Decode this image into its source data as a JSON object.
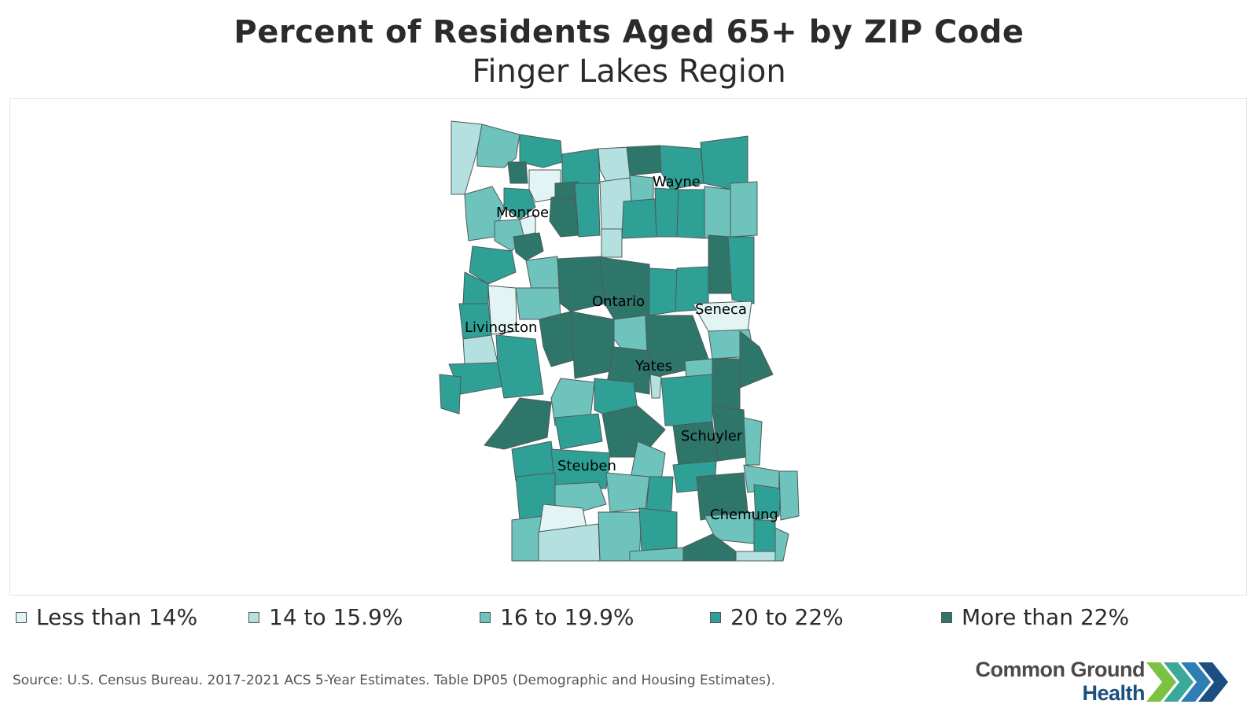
{
  "title": "Percent of Residents Aged 65+ by ZIP Code",
  "subtitle": "Finger Lakes Region",
  "colors": {
    "less_than_14": "#e3f4f4",
    "14_to_15_9": "#b4e1e0",
    "16_to_19_9": "#6ec3bc",
    "20_to_22": "#2fa096",
    "more_than_22": "#2e766a",
    "border": "#555555"
  },
  "legend": [
    {
      "label": "Less than 14%",
      "color": "#e3f4f4"
    },
    {
      "label": "14 to 15.9%",
      "color": "#b4e1e0"
    },
    {
      "label": "16 to 19.9%",
      "color": "#6ec3bc"
    },
    {
      "label": "20 to 22%",
      "color": "#2fa096"
    },
    {
      "label": "More than 22%",
      "color": "#2e766a"
    }
  ],
  "counties": {
    "monroe": "Monroe",
    "wayne": "Wayne",
    "ontario": "Ontario",
    "seneca": "Seneca",
    "livingston": "Livingston",
    "yates": "Yates",
    "schuyler": "Schuyler",
    "steuben": "Steuben",
    "chemung": "Chemung"
  },
  "source": "Source: U.S. Census Bureau. 2017-2021 ACS 5-Year Estimates. Table DP05 (Demographic and Housing Estimates).",
  "logo": {
    "line1": "Common Ground",
    "line2": "Health"
  }
}
